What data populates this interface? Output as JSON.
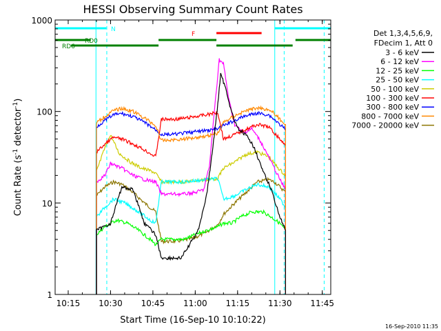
{
  "chart_data": {
    "type": "line",
    "title": "HESSI Observing Summary Count Rates",
    "xlabel": "Start Time (16-Sep-10 10:10:22)",
    "ylabel": "Count Rate (s⁻¹ detector⁻¹)",
    "ylabel_main": "Count Rate (s",
    "ylabel_sup1": "-1",
    "ylabel_mid": " detector",
    "ylabel_sup2": "-1",
    "ylabel_end": ")",
    "yscale": "log",
    "ylim": [
      1,
      1000
    ],
    "xlim": [
      "10:10:22",
      "11:48:00"
    ],
    "x_ticks": [
      "10:15",
      "10:30",
      "10:45",
      "11:00",
      "11:15",
      "11:30",
      "11:45"
    ],
    "y_ticks": [
      "1",
      "10",
      "100",
      "1000"
    ],
    "footer_date": "16-Sep-2010 11:35",
    "legend": {
      "header_1": "Det 1,3,4,5,6,9,",
      "header_2": "FDecim 1, Att 0",
      "entries": [
        {
          "name": "3 - 6 keV",
          "color": "#000000"
        },
        {
          "name": "6 - 12 keV",
          "color": "#ff00ff"
        },
        {
          "name": "12 - 25 keV",
          "color": "#00ff00"
        },
        {
          "name": "25 - 50 keV",
          "color": "#00ffff"
        },
        {
          "name": "50 - 100 keV",
          "color": "#cccc00"
        },
        {
          "name": "100 - 300 keV",
          "color": "#ff0000"
        },
        {
          "name": "300 - 800 keV",
          "color": "#0000ff"
        },
        {
          "name": "800 - 7000 keV",
          "color": "#ff8800"
        },
        {
          "name": "7000 - 20000 keV",
          "color": "#8b7500"
        }
      ]
    },
    "flags": [
      {
        "label": "N",
        "color": "#00ffff",
        "segments": [
          [
            "10:10:22",
            "10:28:30"
          ],
          [
            "11:28:10",
            "11:48:00"
          ]
        ]
      },
      {
        "label": "F",
        "color": "#ff0000",
        "segments": [
          [
            "11:07:30",
            "11:23:30"
          ]
        ]
      },
      {
        "label": "RD0",
        "color": "#008000",
        "segments": [
          [
            "10:10:22",
            "10:23:00"
          ],
          [
            "10:47:00",
            "11:07:30"
          ],
          [
            "11:35:30",
            "11:48:00"
          ]
        ]
      },
      {
        "label": "RD6",
        "color": "#008000",
        "segments": [
          [
            "10:16:00",
            "10:47:00"
          ],
          [
            "11:07:30",
            "11:34:30"
          ]
        ]
      }
    ],
    "night_boundaries": [
      "10:24:50",
      "10:28:40",
      "11:28:10",
      "11:31:30",
      "11:45:40"
    ],
    "series": [
      {
        "name": "3 - 6 keV",
        "color": "#000000",
        "x": [
          "10:25:00",
          "10:30:00",
          "10:34:00",
          "10:38:00",
          "10:42:00",
          "10:46:00",
          "10:48:00",
          "10:52:00",
          "10:55:00",
          "10:58:00",
          "11:01:00",
          "11:04:00",
          "11:06:00",
          "11:08:00",
          "11:09:00",
          "11:11:00",
          "11:13:00",
          "11:15:00",
          "11:18:00",
          "11:21:00",
          "11:24:00",
          "11:27:00",
          "11:28:00",
          "11:30:00",
          "11:32:00"
        ],
        "values": [
          5,
          6,
          15,
          14,
          6,
          4.5,
          2.5,
          2.5,
          2.5,
          3.5,
          5,
          12,
          35,
          120,
          260,
          170,
          95,
          65,
          55,
          40,
          22,
          14,
          11,
          7,
          5
        ]
      },
      {
        "name": "6 - 12 keV",
        "color": "#ff00ff",
        "x": [
          "10:25:00",
          "10:28:00",
          "10:30:00",
          "10:34:00",
          "10:38:00",
          "10:42:00",
          "10:46:00",
          "10:48:00",
          "10:52:00",
          "10:56:00",
          "11:00:00",
          "11:03:00",
          "11:05:00",
          "11:07:00",
          "11:08:30",
          "11:10:00",
          "11:12:00",
          "11:14:00",
          "11:17:00",
          "11:20:00",
          "11:23:00",
          "11:26:00",
          "11:28:00",
          "11:30:00",
          "11:32:00"
        ],
        "values": [
          17,
          20,
          27,
          24,
          20,
          18,
          17,
          12.5,
          12.5,
          12.5,
          13,
          14,
          25,
          120,
          370,
          330,
          130,
          72,
          58,
          65,
          48,
          32,
          24,
          18,
          14
        ]
      },
      {
        "name": "12 - 25 keV",
        "color": "#00ff00",
        "x": [
          "10:25:00",
          "10:28:00",
          "10:32:00",
          "10:36:00",
          "10:40:00",
          "10:44:00",
          "10:46:00",
          "10:48:00",
          "10:52:00",
          "10:56:00",
          "11:00:00",
          "11:04:00",
          "11:08:00",
          "11:10:00",
          "11:13:00",
          "11:16:00",
          "11:20:00",
          "11:24:00",
          "11:27:00",
          "11:30:00",
          "11:32:00"
        ],
        "values": [
          4.5,
          5.5,
          6.5,
          6,
          5,
          4,
          3.5,
          4,
          4,
          4,
          4.5,
          5,
          5.5,
          6,
          6,
          7,
          8,
          8,
          7,
          6,
          5
        ]
      },
      {
        "name": "25 - 50 keV",
        "color": "#00ffff",
        "x": [
          "10:25:00",
          "10:28:00",
          "10:31:00",
          "10:35:00",
          "10:40:00",
          "10:44:00",
          "10:46:00",
          "10:48:00",
          "10:52:00",
          "10:56:00",
          "11:00:00",
          "11:04:00",
          "11:08:00",
          "11:10:00",
          "11:14:00",
          "11:18:00",
          "11:22:00",
          "11:26:00",
          "11:28:00",
          "11:30:00",
          "11:32:00"
        ],
        "values": [
          7,
          9,
          11,
          10,
          8,
          6.5,
          6,
          17,
          17,
          17,
          17.5,
          18,
          18.5,
          11,
          12,
          14,
          16,
          15,
          13,
          11,
          9
        ]
      },
      {
        "name": "50 - 100 keV",
        "color": "#cccc00",
        "x": [
          "10:25:00",
          "10:28:00",
          "10:30:00",
          "10:33:00",
          "10:37:00",
          "10:41:00",
          "10:45:00",
          "10:46:00",
          "10:48:00",
          "10:52:00",
          "10:56:00",
          "11:00:00",
          "11:04:00",
          "11:08:00",
          "11:10:00",
          "11:14:00",
          "11:18:00",
          "11:22:00",
          "11:26:00",
          "11:28:00",
          "11:30:00",
          "11:32:00"
        ],
        "values": [
          22,
          40,
          55,
          35,
          28,
          24,
          22,
          21,
          17,
          17,
          17,
          17.5,
          18,
          18.5,
          24,
          28,
          34,
          36,
          32,
          27,
          23,
          20
        ]
      },
      {
        "name": "100 - 300 keV",
        "color": "#ff0000",
        "x": [
          "10:25:00",
          "10:28:00",
          "10:31:00",
          "10:34:00",
          "10:38:00",
          "10:42:00",
          "10:46:00",
          "10:48:00",
          "10:52:00",
          "10:56:00",
          "11:00:00",
          "11:04:00",
          "11:08:00",
          "11:10:00",
          "11:14:00",
          "11:18:00",
          "11:22:00",
          "11:26:00",
          "11:28:00",
          "11:30:00",
          "11:32:00"
        ],
        "values": [
          36,
          44,
          52,
          50,
          44,
          38,
          32,
          82,
          82,
          84,
          88,
          92,
          98,
          50,
          56,
          64,
          72,
          68,
          58,
          50,
          42
        ]
      },
      {
        "name": "300 - 800 keV",
        "color": "#0000ff",
        "x": [
          "10:25:00",
          "10:28:00",
          "10:31:00",
          "10:34:00",
          "10:38:00",
          "10:42:00",
          "10:46:00",
          "10:48:00",
          "10:52:00",
          "10:56:00",
          "11:00:00",
          "11:04:00",
          "11:08:00",
          "11:10:00",
          "11:14:00",
          "11:18:00",
          "11:22:00",
          "11:26:00",
          "11:28:00",
          "11:30:00",
          "11:32:00"
        ],
        "values": [
          68,
          80,
          92,
          95,
          88,
          76,
          63,
          56,
          56,
          58,
          60,
          62,
          64,
          70,
          80,
          90,
          96,
          92,
          82,
          72,
          64
        ]
      },
      {
        "name": "800 - 7000 keV",
        "color": "#ff8800",
        "x": [
          "10:25:00",
          "10:28:00",
          "10:31:00",
          "10:34:00",
          "10:38:00",
          "10:42:00",
          "10:46:00",
          "10:48:00",
          "10:52:00",
          "10:56:00",
          "11:00:00",
          "11:04:00",
          "11:08:00",
          "11:10:00",
          "11:14:00",
          "11:18:00",
          "11:22:00",
          "11:26:00",
          "11:28:00",
          "11:30:00",
          "11:32:00"
        ],
        "values": [
          75,
          88,
          102,
          108,
          100,
          85,
          70,
          48,
          49,
          50,
          52,
          54,
          58,
          76,
          90,
          102,
          110,
          105,
          95,
          82,
          72
        ]
      },
      {
        "name": "7000 - 20000 keV",
        "color": "#8b7500",
        "x": [
          "10:25:00",
          "10:28:00",
          "10:31:00",
          "10:34:00",
          "10:38:00",
          "10:42:00",
          "10:46:00",
          "10:48:00",
          "10:52:00",
          "10:56:00",
          "11:00:00",
          "11:04:00",
          "11:08:00",
          "11:10:00",
          "11:14:00",
          "11:18:00",
          "11:22:00",
          "11:26:00",
          "11:28:00",
          "11:30:00",
          "11:32:00"
        ],
        "values": [
          12,
          15,
          17,
          16,
          13,
          10,
          8,
          3.8,
          3.8,
          3.9,
          4.2,
          4.8,
          5.8,
          7.5,
          10,
          13,
          17,
          18,
          17,
          15,
          13
        ]
      }
    ]
  }
}
